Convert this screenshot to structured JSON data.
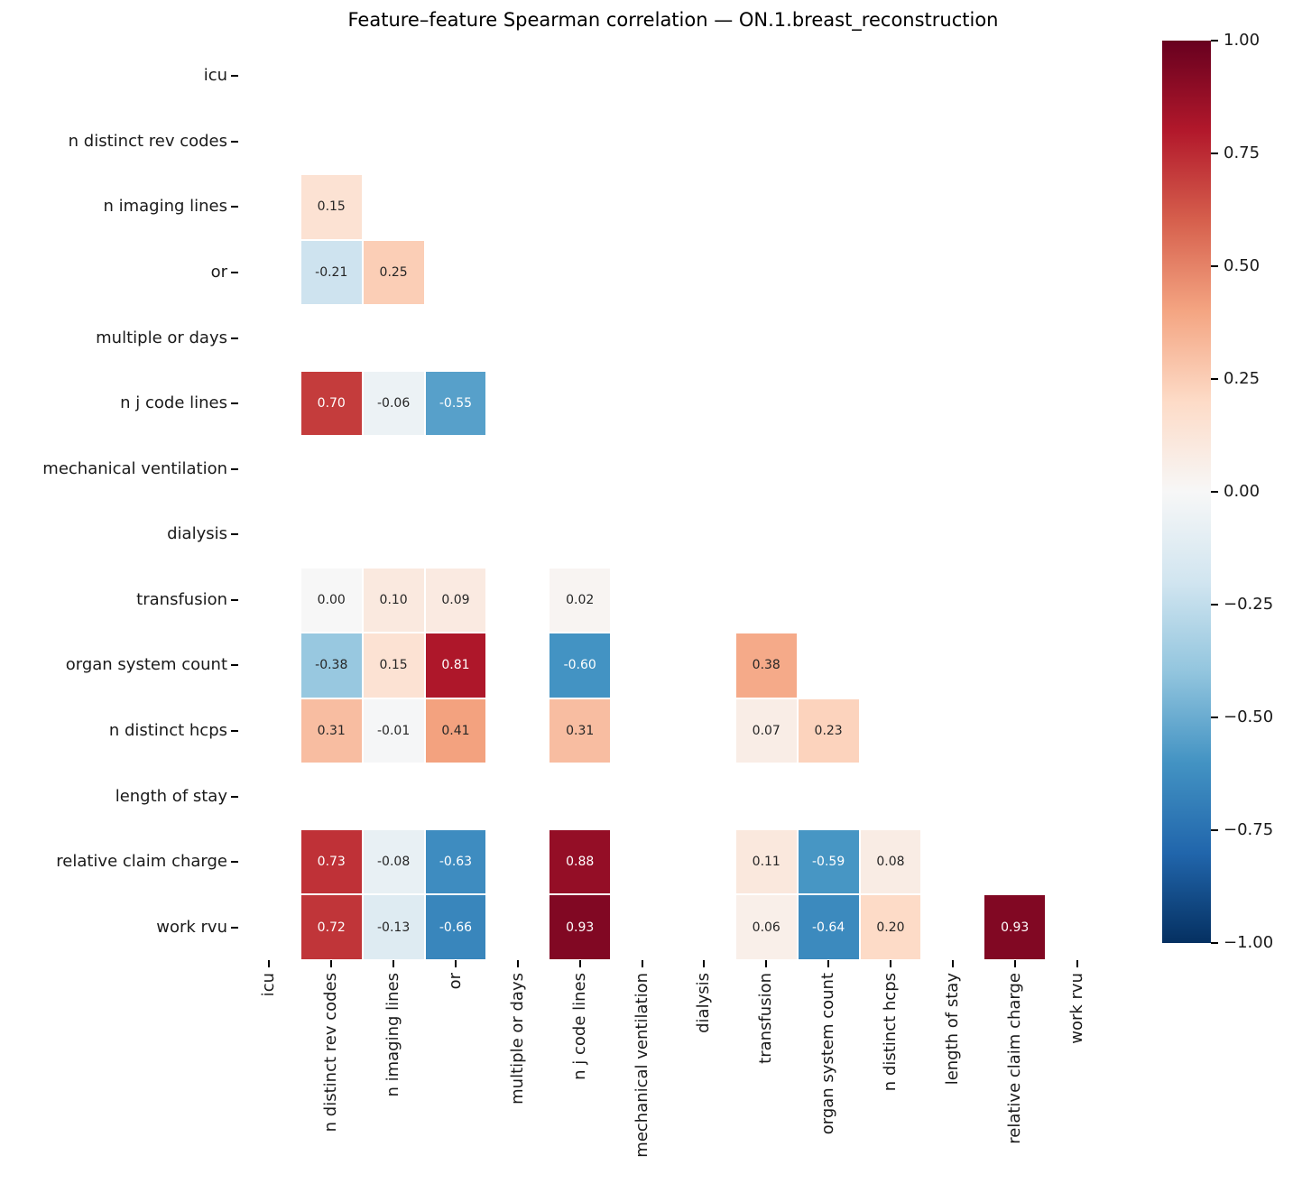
{
  "title": "Feature–feature Spearman correlation — ON.1.breast_reconstruction",
  "chart_data": {
    "type": "heatmap",
    "subtype": "lower-triangle-correlation-matrix",
    "features": [
      "icu",
      "n distinct rev codes",
      "n imaging lines",
      "or",
      "multiple or days",
      "n j code lines",
      "mechanical ventilation",
      "dialysis",
      "transfusion",
      "organ system count",
      "n distinct hcps",
      "length of stay",
      "relative claim charge",
      "work rvu"
    ],
    "empty_features_note": "icu, multiple or days, mechanical ventilation, dialysis and length of stay rows/columns contain no values; upper triangle and diagonal are masked (white)",
    "vmin": -1.0,
    "vmax": 1.0,
    "grid": false,
    "legend_position": "right-colorbar",
    "entries": [
      {
        "row": "n imaging lines",
        "col": "n distinct rev codes",
        "value": 0.15
      },
      {
        "row": "or",
        "col": "n distinct rev codes",
        "value": -0.21
      },
      {
        "row": "or",
        "col": "n imaging lines",
        "value": 0.25
      },
      {
        "row": "n j code lines",
        "col": "n distinct rev codes",
        "value": 0.7
      },
      {
        "row": "n j code lines",
        "col": "n imaging lines",
        "value": -0.06
      },
      {
        "row": "n j code lines",
        "col": "or",
        "value": -0.55
      },
      {
        "row": "transfusion",
        "col": "n distinct rev codes",
        "value": 0.0
      },
      {
        "row": "transfusion",
        "col": "n imaging lines",
        "value": 0.1
      },
      {
        "row": "transfusion",
        "col": "or",
        "value": 0.09
      },
      {
        "row": "transfusion",
        "col": "n j code lines",
        "value": 0.02
      },
      {
        "row": "organ system count",
        "col": "n distinct rev codes",
        "value": -0.38
      },
      {
        "row": "organ system count",
        "col": "n imaging lines",
        "value": 0.15
      },
      {
        "row": "organ system count",
        "col": "or",
        "value": 0.81
      },
      {
        "row": "organ system count",
        "col": "n j code lines",
        "value": -0.6
      },
      {
        "row": "organ system count",
        "col": "transfusion",
        "value": 0.38
      },
      {
        "row": "n distinct hcps",
        "col": "n distinct rev codes",
        "value": 0.31
      },
      {
        "row": "n distinct hcps",
        "col": "n imaging lines",
        "value": -0.01
      },
      {
        "row": "n distinct hcps",
        "col": "or",
        "value": 0.41
      },
      {
        "row": "n distinct hcps",
        "col": "n j code lines",
        "value": 0.31
      },
      {
        "row": "n distinct hcps",
        "col": "transfusion",
        "value": 0.07
      },
      {
        "row": "n distinct hcps",
        "col": "organ system count",
        "value": 0.23
      },
      {
        "row": "relative claim charge",
        "col": "n distinct rev codes",
        "value": 0.73
      },
      {
        "row": "relative claim charge",
        "col": "n imaging lines",
        "value": -0.08
      },
      {
        "row": "relative claim charge",
        "col": "or",
        "value": -0.63
      },
      {
        "row": "relative claim charge",
        "col": "n j code lines",
        "value": 0.88
      },
      {
        "row": "relative claim charge",
        "col": "transfusion",
        "value": 0.11
      },
      {
        "row": "relative claim charge",
        "col": "organ system count",
        "value": -0.59
      },
      {
        "row": "relative claim charge",
        "col": "n distinct hcps",
        "value": 0.08
      },
      {
        "row": "work rvu",
        "col": "n distinct rev codes",
        "value": 0.72
      },
      {
        "row": "work rvu",
        "col": "n imaging lines",
        "value": -0.13
      },
      {
        "row": "work rvu",
        "col": "or",
        "value": -0.66
      },
      {
        "row": "work rvu",
        "col": "n j code lines",
        "value": 0.93
      },
      {
        "row": "work rvu",
        "col": "transfusion",
        "value": 0.06
      },
      {
        "row": "work rvu",
        "col": "organ system count",
        "value": -0.64
      },
      {
        "row": "work rvu",
        "col": "n distinct hcps",
        "value": 0.2
      },
      {
        "row": "work rvu",
        "col": "relative claim charge",
        "value": 0.93
      }
    ],
    "colormap": {
      "name": "RdBu_r",
      "anchors_low_to_high": [
        "#053061",
        "#2166ac",
        "#4393c3",
        "#92c5de",
        "#d1e5f0",
        "#f7f7f7",
        "#fddbc7",
        "#f4a582",
        "#d6604d",
        "#b2182b",
        "#67001f"
      ]
    },
    "annotation_colors": {
      "dark_text": "#262626",
      "light_text": "#ffffff"
    },
    "colorbar": {
      "tick_values": [
        1.0,
        0.75,
        0.5,
        0.25,
        0.0,
        -0.25,
        -0.5,
        -0.75,
        -1.0
      ],
      "tick_labels": [
        "1.00",
        "0.75",
        "0.50",
        "0.25",
        "0.00",
        "−0.25",
        "−0.50",
        "−0.75",
        "−1.00"
      ]
    }
  }
}
